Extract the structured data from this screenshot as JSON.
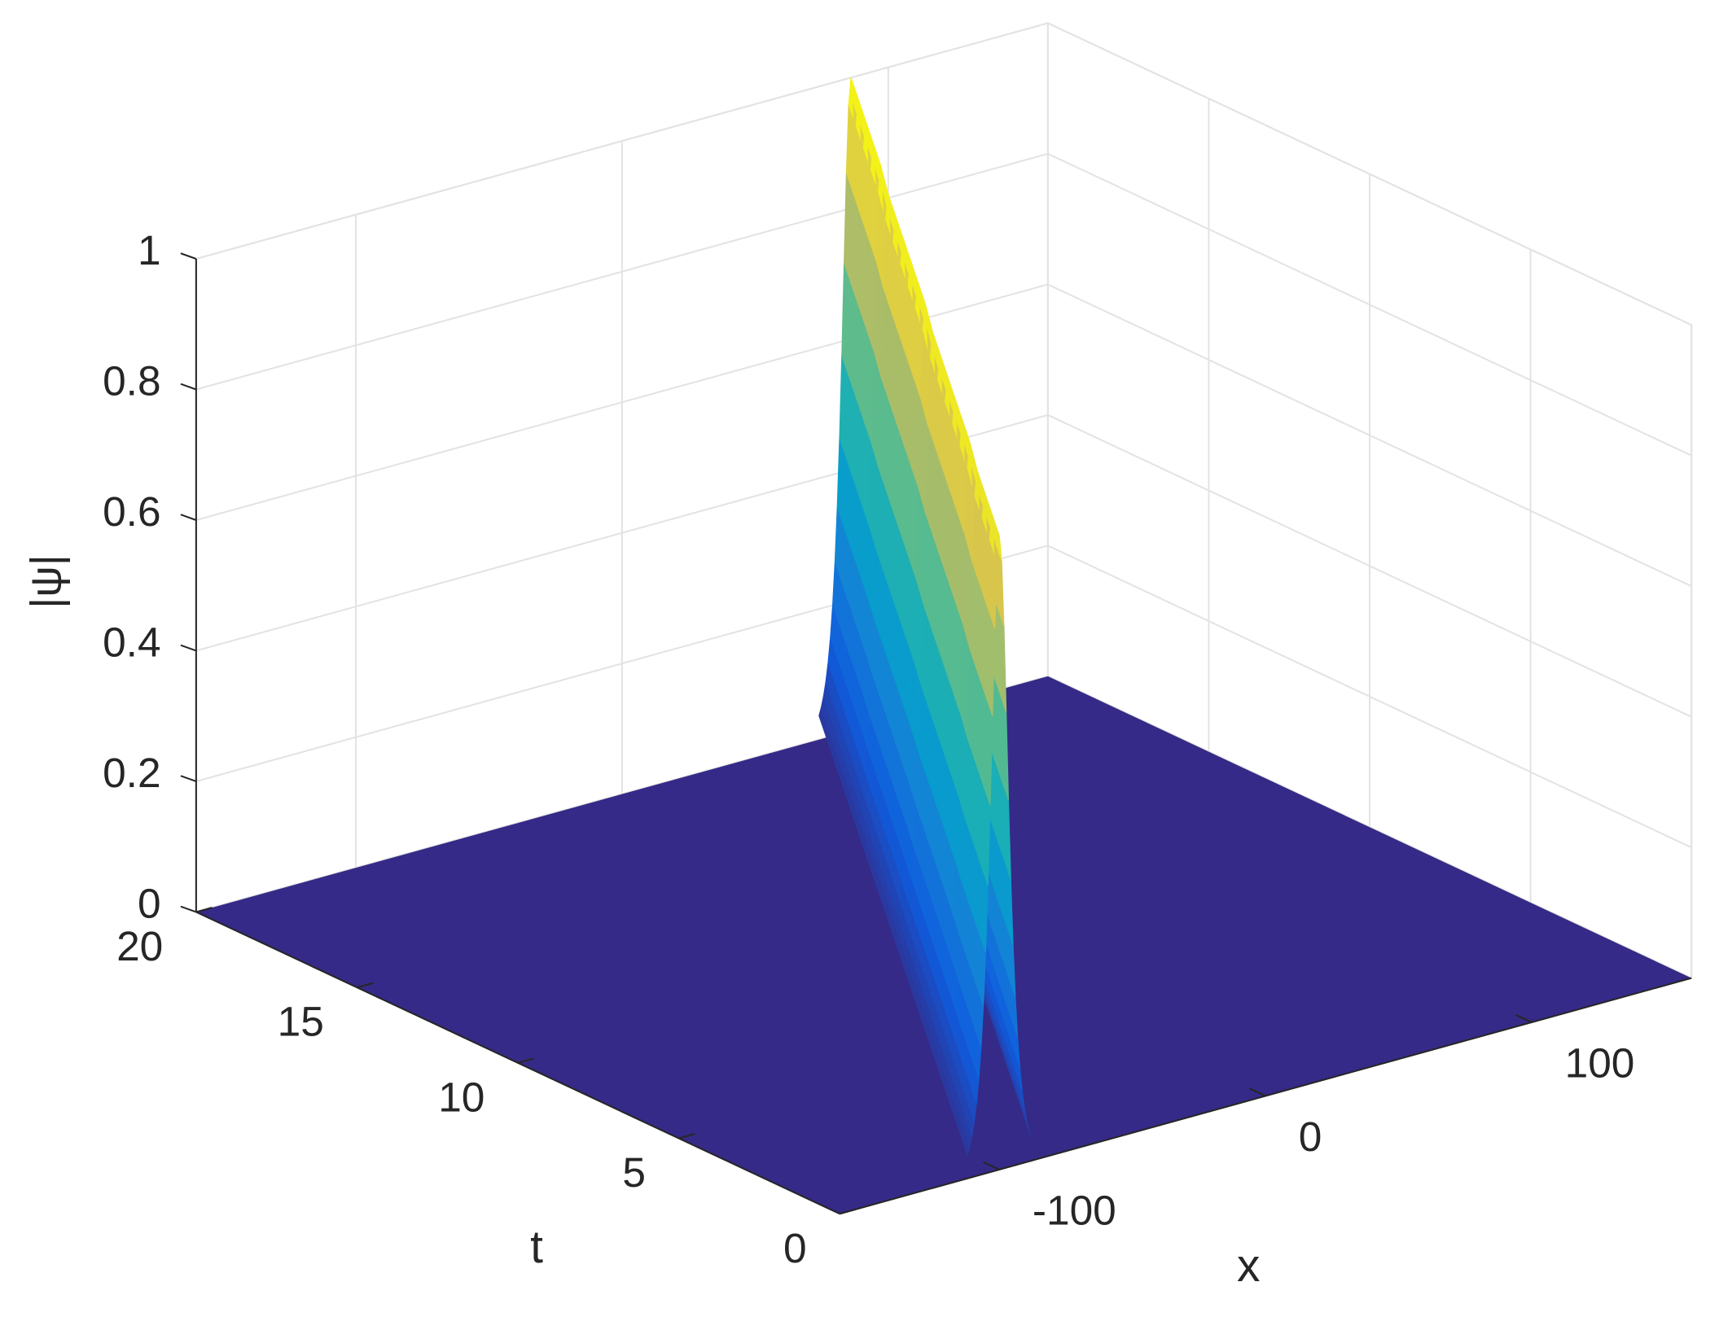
{
  "chart_data": {
    "type": "surface3d",
    "xlabel": "x",
    "ylabel": "t",
    "zlabel": "|ψ|",
    "xlim": [
      -160,
      160
    ],
    "xticks": [
      -100,
      0,
      100
    ],
    "ylim": [
      0,
      20
    ],
    "yticks": [
      0,
      5,
      10,
      15,
      20
    ],
    "zlim": [
      0,
      1
    ],
    "zticks": [
      0,
      0.2,
      0.4,
      0.6,
      0.8,
      1
    ],
    "grid": true,
    "colormap": [
      "#352a87",
      "#0f5cdd",
      "#1481d6",
      "#06a4ca",
      "#2eb7a4",
      "#87bf77",
      "#d1bb59",
      "#f9fb0e"
    ],
    "surface": {
      "t": [
        0,
        1,
        2,
        3,
        4,
        5,
        6,
        7,
        8,
        9,
        10,
        11,
        12,
        13,
        14,
        15,
        16,
        17,
        18,
        19,
        20
      ],
      "center": [
        -100,
        -90.7,
        -81.4,
        -72.1,
        -62.8,
        -53.5,
        -44.2,
        -34.9,
        -25.6,
        -16.3,
        -7,
        2.3,
        11.6,
        20.9,
        30.2,
        39.5,
        48.8,
        58.1,
        67.4,
        76.7,
        86
      ],
      "peak": [
        0.97,
        0.97,
        0.97,
        0.97,
        0.98,
        0.98,
        0.98,
        0.98,
        0.98,
        0.98,
        0.99,
        0.99,
        0.99,
        0.99,
        0.99,
        0.99,
        1,
        1,
        1,
        1,
        1
      ],
      "width": 3
    }
  }
}
